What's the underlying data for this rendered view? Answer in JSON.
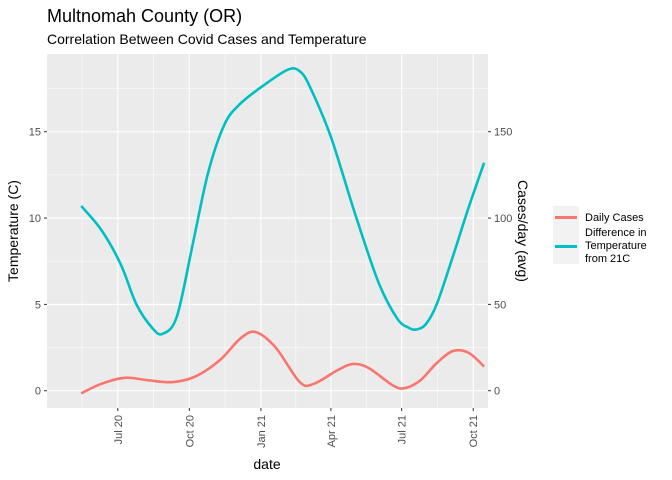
{
  "chart_data": {
    "type": "line",
    "title": "Multnomah County (OR)",
    "subtitle": "Correlation Between Covid Cases and Temperature",
    "xlabel": "date",
    "ylabel_left": "Temperature (C)",
    "ylabel_right": "Cases/day (avg)",
    "x_ticks": [
      "Jul 20",
      "Oct 20",
      "Jan 21",
      "Apr 21",
      "Jul 21",
      "Oct 21"
    ],
    "x_tick_dates": [
      "2020-07-01",
      "2020-10-01",
      "2021-01-01",
      "2021-04-01",
      "2021-07-01",
      "2021-10-01"
    ],
    "xlim": [
      "2020-04-01",
      "2021-10-20"
    ],
    "y_left_ticks": [
      "0",
      "5",
      "10",
      "15"
    ],
    "y_left_values": [
      0,
      5,
      10,
      15
    ],
    "y_right_ticks": [
      "0",
      "50",
      "100",
      "150"
    ],
    "y_right_values": [
      0,
      50,
      100,
      150
    ],
    "ylim_left": [
      -1,
      19.5
    ],
    "ylim_right": [
      -10,
      195
    ],
    "grid": true,
    "legend_position": "right",
    "colors": {
      "panel": "#ebebeb",
      "grid": "#ffffff",
      "cases": "#f8766d",
      "temperature": "#00bfc4"
    },
    "series": [
      {
        "name": "Daily Cases",
        "color": "#f8766d",
        "axis": "left",
        "x": [
          "2020-05-15",
          "2020-06-10",
          "2020-07-10",
          "2020-08-10",
          "2020-09-10",
          "2020-10-10",
          "2020-11-10",
          "2020-12-05",
          "2020-12-25",
          "2021-01-20",
          "2021-02-20",
          "2021-03-10",
          "2021-04-10",
          "2021-04-30",
          "2021-05-20",
          "2021-06-20",
          "2021-07-05",
          "2021-07-25",
          "2021-08-15",
          "2021-09-05",
          "2021-09-25",
          "2021-10-15"
        ],
        "values": [
          -0.15,
          0.4,
          0.75,
          0.6,
          0.5,
          0.85,
          1.8,
          3.0,
          3.4,
          2.5,
          0.5,
          0.4,
          1.2,
          1.55,
          1.3,
          0.3,
          0.15,
          0.6,
          1.6,
          2.3,
          2.2,
          1.4
        ]
      },
      {
        "name": "Difference in Temperature from 21C",
        "color": "#00bfc4",
        "axis": "left",
        "x": [
          "2020-05-15",
          "2020-06-10",
          "2020-07-05",
          "2020-07-25",
          "2020-08-15",
          "2020-08-28",
          "2020-09-15",
          "2020-10-05",
          "2020-10-25",
          "2020-11-15",
          "2020-12-05",
          "2021-01-05",
          "2021-02-05",
          "2021-02-20",
          "2021-03-05",
          "2021-04-01",
          "2021-05-01",
          "2021-06-01",
          "2021-06-25",
          "2021-07-10",
          "2021-07-20",
          "2021-08-01",
          "2021-08-15",
          "2021-09-05",
          "2021-09-25",
          "2021-10-15"
        ],
        "values": [
          10.7,
          9.3,
          7.3,
          5.0,
          3.6,
          3.3,
          4.3,
          8.4,
          12.6,
          15.4,
          16.6,
          17.7,
          18.6,
          18.5,
          17.6,
          14.7,
          10.4,
          6.3,
          4.2,
          3.65,
          3.55,
          3.85,
          5.0,
          7.8,
          10.6,
          13.2
        ]
      }
    ]
  }
}
